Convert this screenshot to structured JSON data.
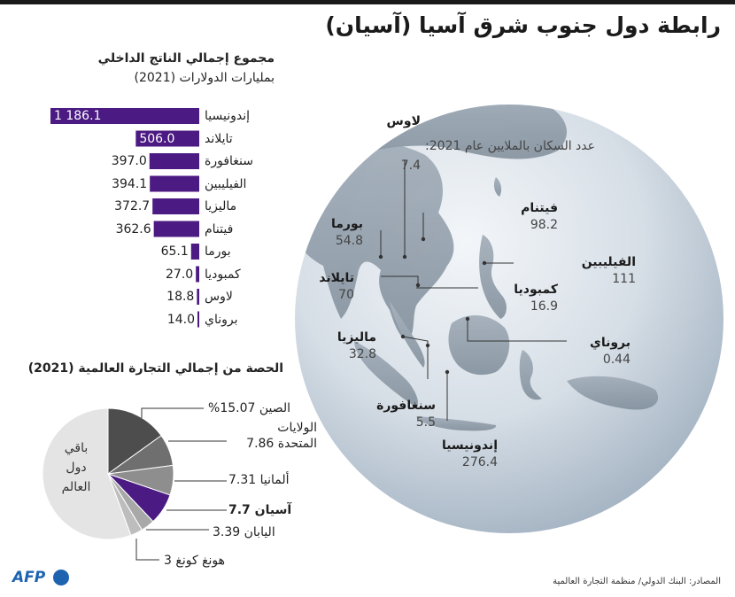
{
  "title": "رابطة دول جنوب شرق آسيا (آسيان)",
  "gdp": {
    "title": "مجموع إجمالي الناتج الداخلي",
    "subtitle": "بمليارات الدولارات (2021)",
    "bar_color": "#4b1a82",
    "items": [
      {
        "name": "إندونيسيا",
        "value": 1186.1,
        "label": "1 186.1"
      },
      {
        "name": "تايلاند",
        "value": 506.0,
        "label": "506.0"
      },
      {
        "name": "سنغافورة",
        "value": 397.0,
        "label": "397.0"
      },
      {
        "name": "الفيليبين",
        "value": 394.1,
        "label": "394.1"
      },
      {
        "name": "ماليزيا",
        "value": 372.7,
        "label": "372.7"
      },
      {
        "name": "فيتنام",
        "value": 362.6,
        "label": "362.6"
      },
      {
        "name": "بورما",
        "value": 65.1,
        "label": "65.1"
      },
      {
        "name": "كمبوديا",
        "value": 27.0,
        "label": "27.0"
      },
      {
        "name": "لاوس",
        "value": 18.8,
        "label": "18.8"
      },
      {
        "name": "بروناي",
        "value": 14.0,
        "label": "14.0"
      }
    ]
  },
  "trade": {
    "title": "الحصة من إجمالي التجارة العالمية (2021)",
    "slices": [
      {
        "label": "الصين 15.07%",
        "value": 15.07,
        "color": "#4d4d4d"
      },
      {
        "label": "الولايات المتحدة 7.86",
        "line1": "الولايات",
        "line2": "المتحدة 7.86",
        "value": 7.86,
        "color": "#6f6f6f"
      },
      {
        "label": "ألمانيا 7.31",
        "value": 7.31,
        "color": "#8e8e8e"
      },
      {
        "label": "آسيان 7.7",
        "value": 7.7,
        "color": "#4b1a82"
      },
      {
        "label": "اليابان 3.39",
        "value": 3.39,
        "color": "#a8a8a8"
      },
      {
        "label": "هونغ كونغ 3",
        "value": 3,
        "color": "#bdbdbd"
      }
    ],
    "rest": {
      "line1": "باقي",
      "line2": "دول",
      "line3": "العالم",
      "color": "#e4e4e4"
    }
  },
  "map": {
    "population_note": "عدد السكان بالملايين عام 2021:",
    "countries": [
      {
        "name": "لاوس",
        "pop": "7.4"
      },
      {
        "name": "فيتنام",
        "pop": "98.2"
      },
      {
        "name": "بورما",
        "pop": "54.8"
      },
      {
        "name": "الفيليبين",
        "pop": "111"
      },
      {
        "name": "تايلاند",
        "pop": "70"
      },
      {
        "name": "كمبوديا",
        "pop": "16.9"
      },
      {
        "name": "بروناي",
        "pop": "0.44"
      },
      {
        "name": "ماليزيا",
        "pop": "32.8"
      },
      {
        "name": "سنغافورة",
        "pop": "5.5"
      },
      {
        "name": "إندونيسيا",
        "pop": "276.4"
      }
    ]
  },
  "sources": "المصادر: البنك الدولي/ منظمة التجارة العالمية",
  "logo": "AFP"
}
